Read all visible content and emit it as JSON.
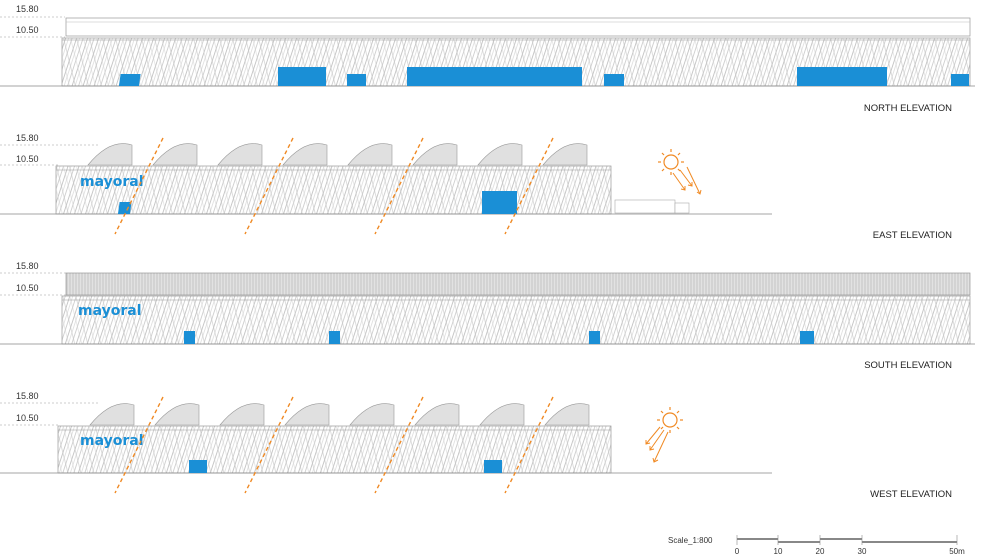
{
  "levels": {
    "upper": "15.80",
    "lower": "10.50"
  },
  "elevations": [
    {
      "title": "NORTH ELEVATION",
      "logo": ""
    },
    {
      "title": "EAST ELEVATION",
      "logo": "mayoral"
    },
    {
      "title": "SOUTH ELEVATION",
      "logo": "mayoral"
    },
    {
      "title": "WEST ELEVATION",
      "logo": "mayoral"
    }
  ],
  "scale": {
    "label": "Scale_1:800",
    "ticks": [
      "0",
      "10",
      "20",
      "30",
      "50m"
    ]
  },
  "colors": {
    "accent_blue": "#1a8fd6",
    "sun_orange": "#f08a24",
    "line": "#888888"
  },
  "icons": [
    "sun-icon",
    "sun-ray-arrow-icon"
  ]
}
